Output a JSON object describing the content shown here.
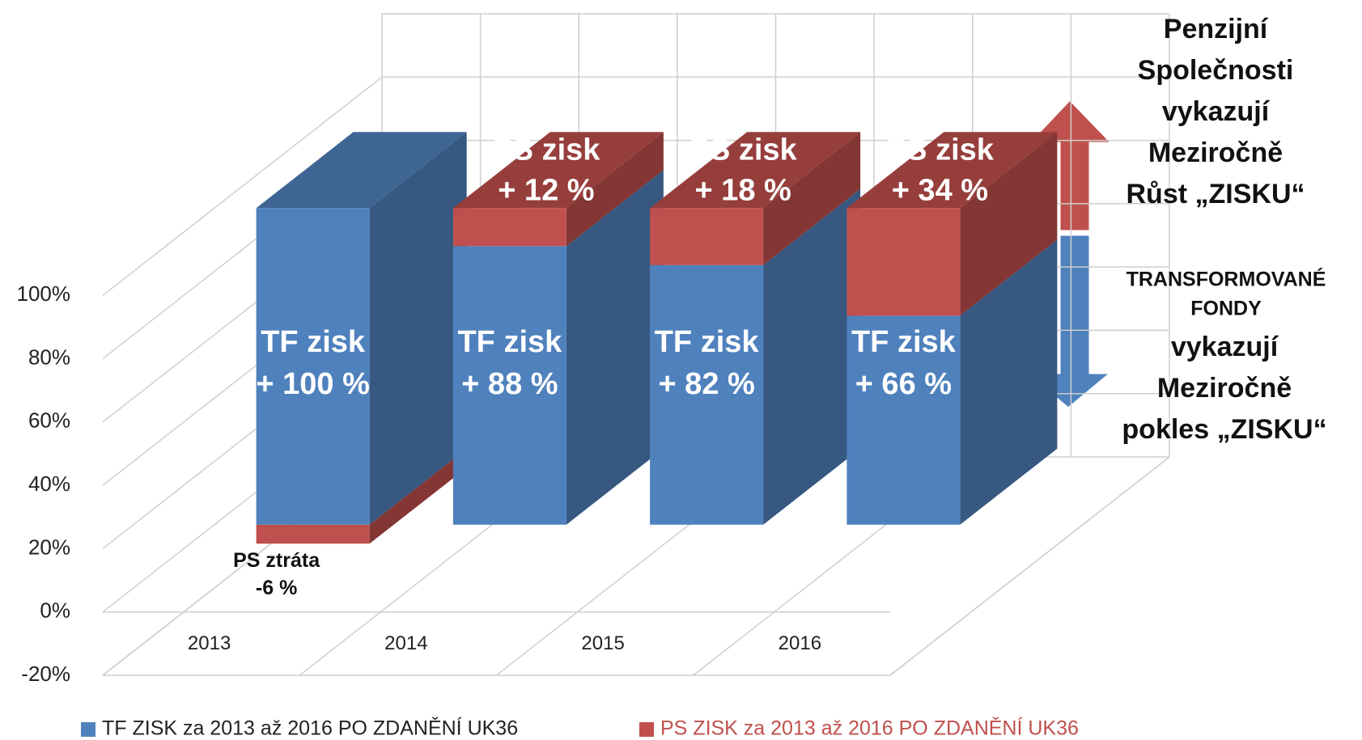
{
  "chart_data": {
    "type": "bar3d_stacked",
    "categories": [
      "2013",
      "2014",
      "2015",
      "2016"
    ],
    "series": [
      {
        "name": "TF ZISK za 2013 až 2016 PO ZDANĚNÍ UK36",
        "color": "#4f81bd",
        "values": [
          100,
          88,
          82,
          66
        ],
        "value_labels": [
          "TF zisk\n+ 100 %",
          "TF zisk\n+ 88 %",
          "TF zisk\n+ 82 %",
          "TF zisk\n+ 66 %"
        ]
      },
      {
        "name": "PS ZISK za 2013 až 2016 PO ZDANĚNÍ UK36",
        "color": "#c0504d",
        "values": [
          -6,
          12,
          18,
          34
        ],
        "value_labels": [
          "PS ztráta\n-6 %",
          "PS zisk\n+ 12 %",
          "PS zisk\n+ 18 %",
          "PS zisk\n+ 34 %"
        ]
      }
    ],
    "ylim": [
      -20,
      120
    ],
    "yticks": [
      {
        "value": -20,
        "label": "-20%"
      },
      {
        "value": 0,
        "label": "0%"
      },
      {
        "value": 20,
        "label": "20%"
      },
      {
        "value": 40,
        "label": "40%"
      },
      {
        "value": 60,
        "label": "60%"
      },
      {
        "value": 80,
        "label": "80%"
      },
      {
        "value": 100,
        "label": "100%"
      }
    ],
    "grid": true,
    "legend": "bottom",
    "annotations": [
      {
        "lines": [
          "Penzijní",
          "Společnosti",
          "vykazují",
          "Meziročně",
          "Růst  „ZISKU“"
        ]
      },
      {
        "lines": [
          "TRANSFORMOVANÉ",
          "FONDY"
        ]
      },
      {
        "lines": [
          "vykazují",
          "Meziročně",
          "pokles  „ZISKU“"
        ]
      }
    ]
  }
}
